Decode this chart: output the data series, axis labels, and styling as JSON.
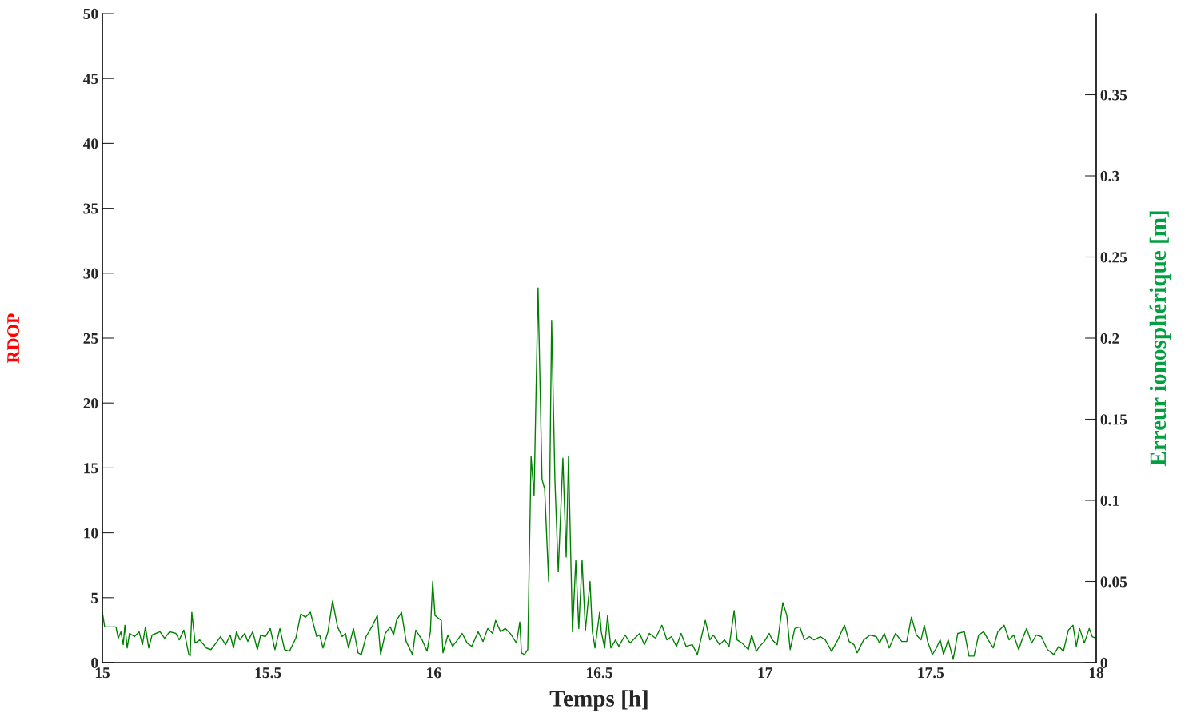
{
  "chart_data": {
    "type": "line",
    "xlabel": "Temps [h]",
    "ylabel": "RDOP",
    "y2label": "Erreur ionosphérique [m]",
    "xlim": [
      15,
      18
    ],
    "xticks": [
      15,
      15.5,
      16,
      {
        "value": 16.5,
        "label": "16.5"
      },
      17,
      17.5,
      18
    ],
    "ylim": [
      0,
      50
    ],
    "yticks": [
      0,
      5,
      10,
      15,
      20,
      25,
      30,
      35,
      40,
      45,
      50
    ],
    "y2lim": [
      0,
      0.4
    ],
    "y2ticks": [
      0,
      0.05,
      0.1,
      0.15,
      0.2,
      0.25,
      0.3,
      0.35
    ],
    "grid": false,
    "series": [
      {
        "color": "#008000",
        "axis": "y2",
        "line_style": "solid",
        "marker": "none",
        "x": [
          15.0,
          15.007,
          15.041,
          15.048,
          15.056,
          15.063,
          15.068,
          15.075,
          15.082,
          15.097,
          15.111,
          15.121,
          15.13,
          15.14,
          15.15,
          15.174,
          15.188,
          15.203,
          15.222,
          15.232,
          15.246,
          15.261,
          15.265,
          15.27,
          15.28,
          15.294,
          15.314,
          15.328,
          15.343,
          15.357,
          15.372,
          15.386,
          15.396,
          15.405,
          15.415,
          15.43,
          15.439,
          15.454,
          15.468,
          15.478,
          15.492,
          15.507,
          15.521,
          15.536,
          15.55,
          15.565,
          15.584,
          15.599,
          15.613,
          15.628,
          15.647,
          15.656,
          15.666,
          15.681,
          15.695,
          15.71,
          15.724,
          15.734,
          15.743,
          15.758,
          15.772,
          15.782,
          15.796,
          15.816,
          15.83,
          15.84,
          15.854,
          15.869,
          15.879,
          15.888,
          15.903,
          15.917,
          15.936,
          15.946,
          15.965,
          15.98,
          15.99,
          15.997,
          16.004,
          16.023,
          16.028,
          16.043,
          16.057,
          16.072,
          16.086,
          16.101,
          16.115,
          16.134,
          16.149,
          16.163,
          16.178,
          16.187,
          16.202,
          16.216,
          16.231,
          16.25,
          16.26,
          16.265,
          16.274,
          16.284,
          16.294,
          16.303,
          16.315,
          16.327,
          16.335,
          16.347,
          16.356,
          16.366,
          16.376,
          16.39,
          16.4,
          16.407,
          16.419,
          16.429,
          16.438,
          16.448,
          16.458,
          16.472,
          16.479,
          16.487,
          16.501,
          16.506,
          16.516,
          16.525,
          16.535,
          16.549,
          16.559,
          16.578,
          16.593,
          16.607,
          16.622,
          16.636,
          16.651,
          16.67,
          16.689,
          16.704,
          16.718,
          16.733,
          16.747,
          16.762,
          16.781,
          16.796,
          16.82,
          16.834,
          16.844,
          16.863,
          16.878,
          16.892,
          16.907,
          16.916,
          16.931,
          16.95,
          16.96,
          16.974,
          16.984,
          16.998,
          17.013,
          17.022,
          17.037,
          17.054,
          17.066,
          17.076,
          17.09,
          17.105,
          17.119,
          17.134,
          17.148,
          17.167,
          17.182,
          17.201,
          17.22,
          17.24,
          17.254,
          17.269,
          17.278,
          17.298,
          17.317,
          17.336,
          17.346,
          17.36,
          17.375,
          17.394,
          17.413,
          17.428,
          17.442,
          17.457,
          17.471,
          17.481,
          17.491,
          17.505,
          17.515,
          17.529,
          17.539,
          17.553,
          17.568,
          17.582,
          17.602,
          17.616,
          17.631,
          17.645,
          17.66,
          17.674,
          17.689,
          17.703,
          17.722,
          17.737,
          17.751,
          17.766,
          17.776,
          17.79,
          17.805,
          17.819,
          17.834,
          17.853,
          17.872,
          17.887,
          17.901,
          17.916,
          17.93,
          17.94,
          17.95,
          17.964,
          17.979,
          17.988,
          18.0
        ],
        "values": [
          0.031,
          0.022,
          0.022,
          0.015,
          0.019,
          0.011,
          0.023,
          0.009,
          0.018,
          0.016,
          0.019,
          0.011,
          0.022,
          0.009,
          0.017,
          0.019,
          0.015,
          0.019,
          0.018,
          0.014,
          0.02,
          0.005,
          0.004,
          0.031,
          0.012,
          0.014,
          0.009,
          0.008,
          0.012,
          0.016,
          0.011,
          0.017,
          0.009,
          0.019,
          0.014,
          0.018,
          0.013,
          0.019,
          0.008,
          0.017,
          0.016,
          0.021,
          0.008,
          0.021,
          0.008,
          0.007,
          0.015,
          0.03,
          0.028,
          0.031,
          0.016,
          0.017,
          0.009,
          0.019,
          0.038,
          0.022,
          0.016,
          0.018,
          0.009,
          0.021,
          0.006,
          0.005,
          0.016,
          0.023,
          0.029,
          0.005,
          0.018,
          0.022,
          0.017,
          0.026,
          0.031,
          0.013,
          0.005,
          0.02,
          0.014,
          0.007,
          0.019,
          0.05,
          0.029,
          0.026,
          0.006,
          0.017,
          0.01,
          0.014,
          0.018,
          0.012,
          0.01,
          0.019,
          0.013,
          0.021,
          0.018,
          0.026,
          0.019,
          0.021,
          0.018,
          0.012,
          0.025,
          0.006,
          0.005,
          0.008,
          0.127,
          0.103,
          0.231,
          0.113,
          0.107,
          0.05,
          0.211,
          0.112,
          0.056,
          0.126,
          0.065,
          0.127,
          0.019,
          0.063,
          0.021,
          0.063,
          0.02,
          0.05,
          0.019,
          0.009,
          0.031,
          0.019,
          0.009,
          0.029,
          0.009,
          0.014,
          0.01,
          0.017,
          0.012,
          0.015,
          0.018,
          0.011,
          0.018,
          0.015,
          0.023,
          0.014,
          0.016,
          0.01,
          0.018,
          0.01,
          0.011,
          0.005,
          0.026,
          0.014,
          0.017,
          0.011,
          0.014,
          0.01,
          0.032,
          0.014,
          0.012,
          0.008,
          0.017,
          0.007,
          0.01,
          0.013,
          0.018,
          0.014,
          0.011,
          0.037,
          0.029,
          0.008,
          0.021,
          0.022,
          0.014,
          0.016,
          0.014,
          0.016,
          0.014,
          0.007,
          0.014,
          0.023,
          0.013,
          0.011,
          0.006,
          0.014,
          0.017,
          0.016,
          0.012,
          0.018,
          0.009,
          0.018,
          0.013,
          0.013,
          0.028,
          0.017,
          0.014,
          0.023,
          0.013,
          0.005,
          0.008,
          0.014,
          0.005,
          0.014,
          0.002,
          0.018,
          0.019,
          0.004,
          0.004,
          0.017,
          0.019,
          0.014,
          0.009,
          0.019,
          0.023,
          0.014,
          0.017,
          0.008,
          0.014,
          0.021,
          0.012,
          0.017,
          0.016,
          0.008,
          0.005,
          0.01,
          0.007,
          0.02,
          0.023,
          0.01,
          0.021,
          0.012,
          0.021,
          0.016,
          0.015
        ]
      }
    ]
  }
}
